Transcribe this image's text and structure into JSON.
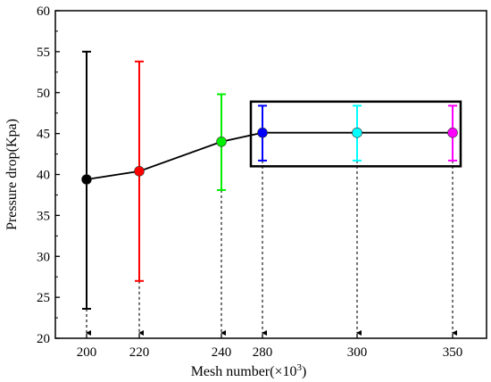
{
  "chart_data": {
    "type": "scatter",
    "xlabel": "Mesh number(×10",
    "xlabel_sup": "3",
    "xlabel_close": ")",
    "ylabel": "Pressure drop(Kpa)",
    "ylim": [
      20,
      60
    ],
    "yticks": [
      20,
      25,
      30,
      35,
      40,
      45,
      50,
      55,
      60
    ],
    "categories": [
      "200",
      "220",
      "240",
      "280",
      "300",
      "350"
    ],
    "points": [
      {
        "x": "200",
        "y": 39.4,
        "err_low": 23.6,
        "err_high": 55.0,
        "color": "#000000"
      },
      {
        "x": "220",
        "y": 40.4,
        "err_low": 27.0,
        "err_high": 53.8,
        "color": "#ff0000"
      },
      {
        "x": "240",
        "y": 44.0,
        "err_low": 38.1,
        "err_high": 49.8,
        "color": "#00ee00"
      },
      {
        "x": "280",
        "y": 45.1,
        "err_low": 41.7,
        "err_high": 48.4,
        "color": "#0000ff"
      },
      {
        "x": "300",
        "y": 45.1,
        "err_low": 41.7,
        "err_high": 48.4,
        "color": "#00ffff"
      },
      {
        "x": "350",
        "y": 45.1,
        "err_low": 41.7,
        "err_high": 48.4,
        "color": "#ff00ff"
      }
    ],
    "line_color": "#000000",
    "grid": false,
    "highlight_box_categories": [
      "280",
      "300",
      "350"
    ],
    "highlight_box_ylim": [
      41.0,
      48.9
    ],
    "guide_lines": "dashed arrows from each point down to the x-axis"
  }
}
